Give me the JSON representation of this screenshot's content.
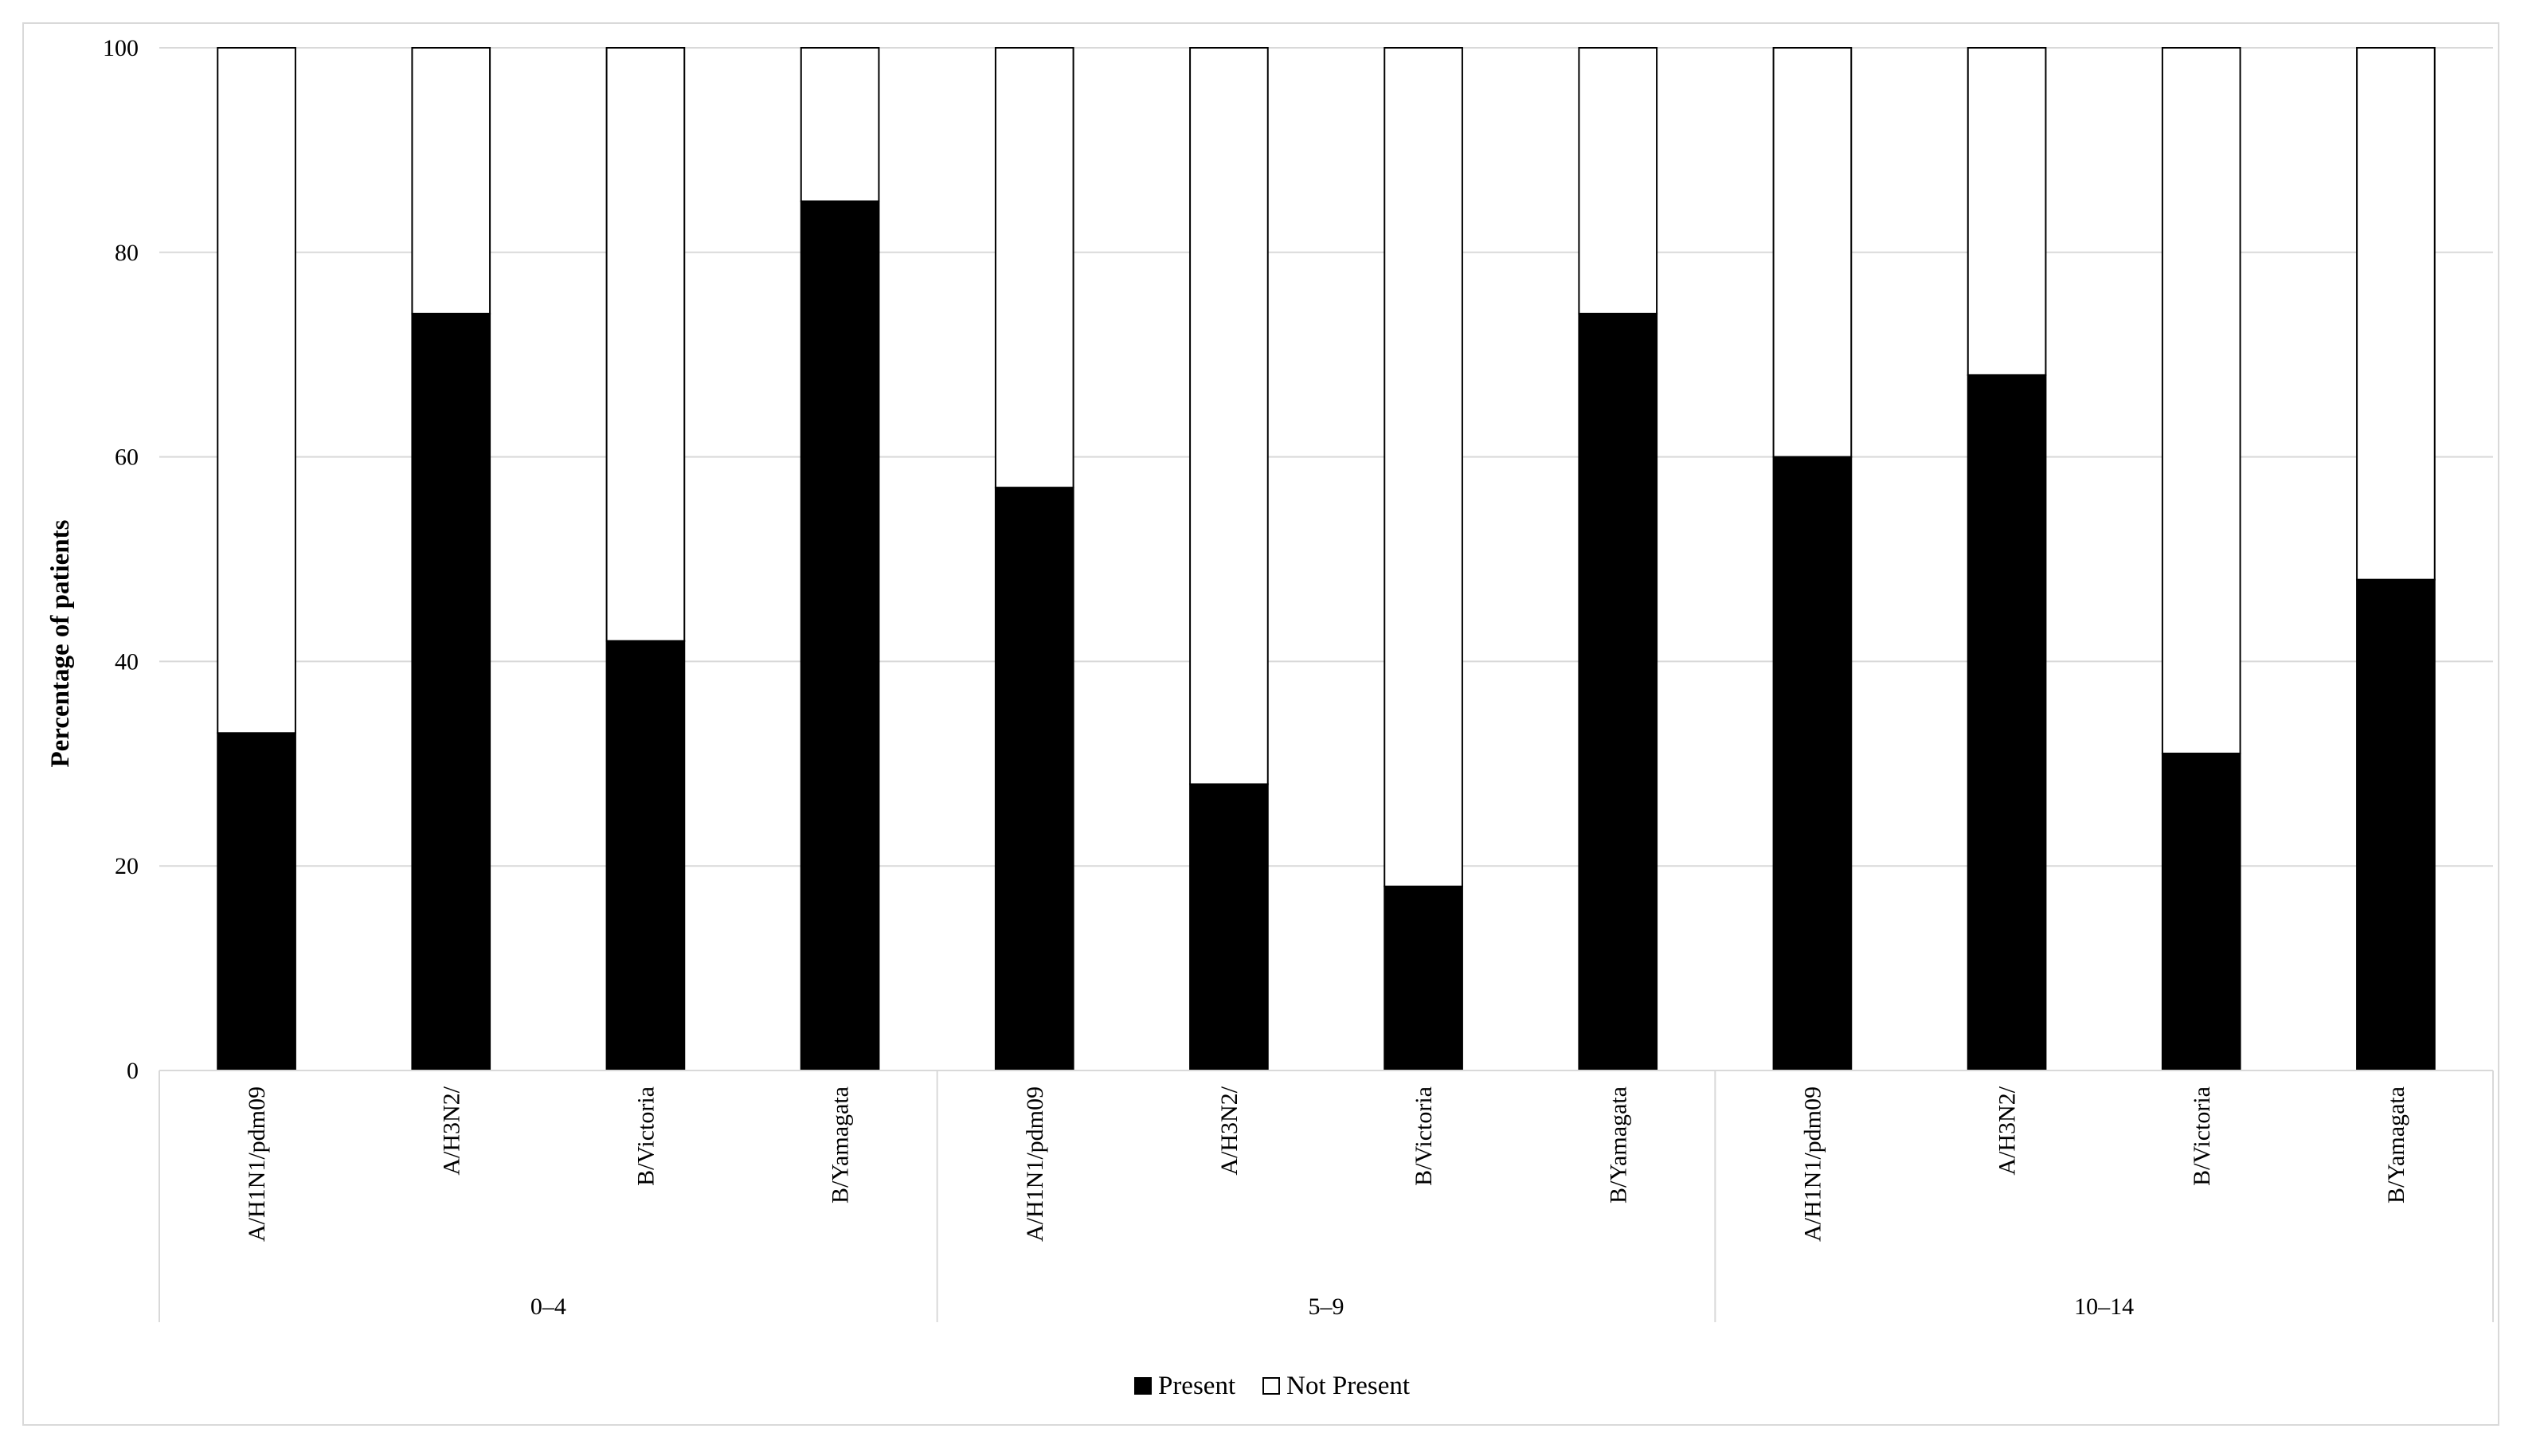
{
  "chart_data": {
    "type": "bar",
    "stacked": true,
    "ylabel": "Percentage of patients",
    "xlabel": "",
    "ylim": [
      0,
      100
    ],
    "yticks": [
      0,
      20,
      40,
      60,
      80,
      100
    ],
    "grid": true,
    "legend_position": "bottom",
    "groups": [
      {
        "label": "0–4",
        "categories": [
          "A/H1N1/pdm09",
          "A/H3N2/",
          "B/Victoria",
          "B/Yamagata"
        ]
      },
      {
        "label": "5–9",
        "categories": [
          "A/H1N1/pdm09",
          "A/H3N2/",
          "B/Victoria",
          "B/Yamagata"
        ]
      },
      {
        "label": "10–14",
        "categories": [
          "A/H1N1/pdm09",
          "A/H3N2/",
          "B/Victoria",
          "B/Yamagata"
        ]
      }
    ],
    "series": [
      {
        "name": "Present",
        "color": "#000000",
        "values": [
          33,
          74,
          42,
          85,
          57,
          28,
          18,
          74,
          60,
          68,
          31,
          48
        ]
      },
      {
        "name": "Not Present",
        "color": "#ffffff",
        "values": [
          67,
          26,
          58,
          15,
          43,
          72,
          82,
          26,
          40,
          32,
          69,
          52
        ]
      }
    ]
  }
}
